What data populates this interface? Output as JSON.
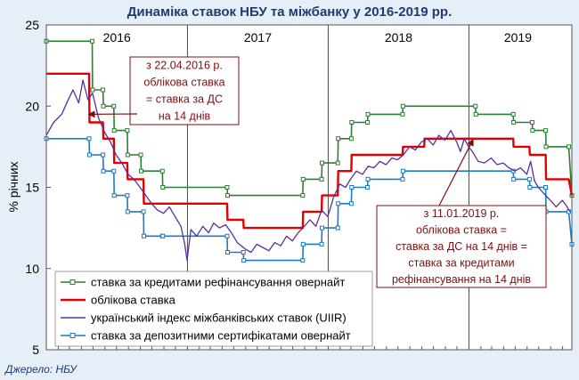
{
  "chart_data": {
    "type": "line",
    "title": "Динаміка ставок НБУ та міжбанку у 2016-2019 рр.",
    "ylabel": "% річних",
    "ylim": [
      5,
      25
    ],
    "yticks": [
      "5",
      "10",
      "15",
      "20",
      "25"
    ],
    "xlim": [
      "2016-01-01",
      "2019-09-25"
    ],
    "year_labels": [
      "2016",
      "2017",
      "2018",
      "2019"
    ],
    "grid": "vertical-year-lines",
    "legend_position": "bottom-left",
    "series": [
      {
        "name": "ставка за кредитами рефінансування овернайт",
        "color": "#2e7d32",
        "marker": "square",
        "points": [
          [
            "2016-01-01",
            24
          ],
          [
            "2016-04-29",
            24
          ],
          [
            "2016-04-30",
            21
          ],
          [
            "2016-05-27",
            21
          ],
          [
            "2016-05-28",
            20
          ],
          [
            "2016-06-24",
            20
          ],
          [
            "2016-06-25",
            18.5
          ],
          [
            "2016-07-29",
            18.5
          ],
          [
            "2016-07-30",
            17
          ],
          [
            "2016-09-02",
            17
          ],
          [
            "2016-09-03",
            16
          ],
          [
            "2016-10-28",
            16
          ],
          [
            "2016-10-29",
            15
          ],
          [
            "2017-04-14",
            15
          ],
          [
            "2017-04-15",
            14.5
          ],
          [
            "2017-10-27",
            14.5
          ],
          [
            "2017-10-28",
            15.5
          ],
          [
            "2017-12-15",
            15.5
          ],
          [
            "2017-12-16",
            16.5
          ],
          [
            "2018-01-26",
            16.5
          ],
          [
            "2018-01-27",
            18
          ],
          [
            "2018-03-02",
            18
          ],
          [
            "2018-03-03",
            19
          ],
          [
            "2018-04-13",
            19
          ],
          [
            "2018-04-14",
            19.5
          ],
          [
            "2018-07-13",
            19.5
          ],
          [
            "2018-07-14",
            20
          ],
          [
            "2019-01-18",
            20
          ],
          [
            "2019-01-19",
            19.5
          ],
          [
            "2019-04-26",
            19.5
          ],
          [
            "2019-04-27",
            19
          ],
          [
            "2019-06-14",
            19
          ],
          [
            "2019-06-15",
            18.5
          ],
          [
            "2019-07-19",
            18.5
          ],
          [
            "2019-07-20",
            17.5
          ],
          [
            "2019-09-17",
            17.5
          ],
          [
            "2019-09-25",
            14.5
          ]
        ]
      },
      {
        "name": "облікова ставка",
        "color": "#e00000",
        "marker": "none",
        "points": [
          [
            "2016-01-01",
            22
          ],
          [
            "2016-04-21",
            22
          ],
          [
            "2016-04-22",
            19
          ],
          [
            "2016-05-27",
            19
          ],
          [
            "2016-05-28",
            18
          ],
          [
            "2016-06-24",
            18
          ],
          [
            "2016-06-25",
            16.5
          ],
          [
            "2016-07-29",
            16.5
          ],
          [
            "2016-07-30",
            15.5
          ],
          [
            "2016-09-09",
            15.5
          ],
          [
            "2016-09-10",
            14
          ],
          [
            "2017-04-14",
            14
          ],
          [
            "2017-04-15",
            13
          ],
          [
            "2017-05-26",
            13
          ],
          [
            "2017-05-27",
            12.5
          ],
          [
            "2017-10-27",
            12.5
          ],
          [
            "2017-10-28",
            13.5
          ],
          [
            "2017-12-15",
            13.5
          ],
          [
            "2017-12-16",
            14.5
          ],
          [
            "2018-01-26",
            14.5
          ],
          [
            "2018-01-27",
            16
          ],
          [
            "2018-03-02",
            16
          ],
          [
            "2018-03-03",
            17
          ],
          [
            "2018-04-13",
            17
          ],
          [
            "2018-04-14",
            17
          ],
          [
            "2018-07-13",
            17
          ],
          [
            "2018-07-14",
            17.5
          ],
          [
            "2018-09-07",
            17.5
          ],
          [
            "2018-09-08",
            18
          ],
          [
            "2019-04-26",
            18
          ],
          [
            "2019-04-27",
            17.5
          ],
          [
            "2019-06-07",
            17.5
          ],
          [
            "2019-06-08",
            17
          ],
          [
            "2019-07-19",
            17
          ],
          [
            "2019-07-20",
            15.5
          ],
          [
            "2019-09-17",
            15.5
          ],
          [
            "2019-09-25",
            14.5
          ]
        ]
      },
      {
        "name": "український індекс міжбанківських ставок (UIIR)",
        "color": "#5a2e9a",
        "marker": "none",
        "points": [
          [
            "2016-01-01",
            18.2
          ],
          [
            "2016-01-20",
            19
          ],
          [
            "2016-02-10",
            19.5
          ],
          [
            "2016-02-25",
            20.3
          ],
          [
            "2016-03-10",
            21
          ],
          [
            "2016-03-25",
            20.2
          ],
          [
            "2016-04-05",
            21.6
          ],
          [
            "2016-04-18",
            20.4
          ],
          [
            "2016-04-30",
            20.8
          ],
          [
            "2016-05-15",
            19.3
          ],
          [
            "2016-05-31",
            18.4
          ],
          [
            "2016-06-15",
            17.8
          ],
          [
            "2016-06-30",
            17
          ],
          [
            "2016-07-15",
            16.5
          ],
          [
            "2016-07-31",
            15.8
          ],
          [
            "2016-08-15",
            15.5
          ],
          [
            "2016-08-31",
            15
          ],
          [
            "2016-09-15",
            14.5
          ],
          [
            "2016-09-30",
            14
          ],
          [
            "2016-10-15",
            13.6
          ],
          [
            "2016-10-31",
            13.4
          ],
          [
            "2016-11-15",
            13.8
          ],
          [
            "2016-11-30",
            13.2
          ],
          [
            "2016-12-15",
            12.6
          ],
          [
            "2016-12-25",
            11.5
          ],
          [
            "2016-12-31",
            10.5
          ],
          [
            "2017-01-10",
            12.4
          ],
          [
            "2017-01-25",
            12
          ],
          [
            "2017-02-10",
            12.6
          ],
          [
            "2017-02-25",
            12.2
          ],
          [
            "2017-03-10",
            12.8
          ],
          [
            "2017-03-25",
            12.5
          ],
          [
            "2017-04-10",
            12.7
          ],
          [
            "2017-04-25",
            12.2
          ],
          [
            "2017-05-10",
            11.6
          ],
          [
            "2017-05-31",
            11.2
          ],
          [
            "2017-06-15",
            11
          ],
          [
            "2017-06-30",
            11.5
          ],
          [
            "2017-07-15",
            11.3
          ],
          [
            "2017-07-31",
            11.1
          ],
          [
            "2017-08-15",
            11.6
          ],
          [
            "2017-08-31",
            11.4
          ],
          [
            "2017-09-15",
            12
          ],
          [
            "2017-09-30",
            11.7
          ],
          [
            "2017-10-15",
            12.2
          ],
          [
            "2017-10-31",
            12.6
          ],
          [
            "2017-11-15",
            13
          ],
          [
            "2017-11-30",
            12.6
          ],
          [
            "2017-12-15",
            13.6
          ],
          [
            "2017-12-31",
            13.2
          ],
          [
            "2018-01-15",
            14.4
          ],
          [
            "2018-01-31",
            15.2
          ],
          [
            "2018-02-15",
            15
          ],
          [
            "2018-02-28",
            15.5
          ],
          [
            "2018-03-15",
            16
          ],
          [
            "2018-03-31",
            15.8
          ],
          [
            "2018-04-15",
            16.3
          ],
          [
            "2018-04-30",
            16.2
          ],
          [
            "2018-05-15",
            16.6
          ],
          [
            "2018-05-31",
            16.4
          ],
          [
            "2018-06-15",
            16.8
          ],
          [
            "2018-06-30",
            16.7
          ],
          [
            "2018-07-15",
            17
          ],
          [
            "2018-07-31",
            17.5
          ],
          [
            "2018-08-15",
            17.3
          ],
          [
            "2018-08-31",
            17.8
          ],
          [
            "2018-09-15",
            18
          ],
          [
            "2018-09-30",
            17.6
          ],
          [
            "2018-10-15",
            18.2
          ],
          [
            "2018-10-31",
            17.9
          ],
          [
            "2018-11-15",
            18.5
          ],
          [
            "2018-11-30",
            17.8
          ],
          [
            "2018-12-10",
            17.2
          ],
          [
            "2018-12-20",
            18
          ],
          [
            "2018-12-31",
            17.5
          ],
          [
            "2019-01-10",
            17.2
          ],
          [
            "2019-01-25",
            16.6
          ],
          [
            "2019-02-10",
            16.5
          ],
          [
            "2019-02-28",
            16.8
          ],
          [
            "2019-03-15",
            16.4
          ],
          [
            "2019-03-31",
            16.5
          ],
          [
            "2019-04-15",
            16.2
          ],
          [
            "2019-04-30",
            16
          ],
          [
            "2019-05-15",
            16.2
          ],
          [
            "2019-05-31",
            15.8
          ],
          [
            "2019-06-10",
            16.6
          ],
          [
            "2019-06-20",
            15.4
          ],
          [
            "2019-06-30",
            15
          ],
          [
            "2019-07-15",
            14.6
          ],
          [
            "2019-07-31",
            14.2
          ],
          [
            "2019-08-15",
            13.8
          ],
          [
            "2019-08-31",
            14.2
          ],
          [
            "2019-09-10",
            13.9
          ],
          [
            "2019-09-20",
            13.5
          ]
        ]
      },
      {
        "name": "ставка за депозитними сертифікатами овернайт",
        "color": "#1f7ac0",
        "marker": "square",
        "points": [
          [
            "2016-01-01",
            18
          ],
          [
            "2016-04-21",
            18
          ],
          [
            "2016-04-22",
            17
          ],
          [
            "2016-05-27",
            17
          ],
          [
            "2016-05-28",
            16
          ],
          [
            "2016-06-24",
            16
          ],
          [
            "2016-06-25",
            14.5
          ],
          [
            "2016-07-29",
            14.5
          ],
          [
            "2016-07-30",
            13.5
          ],
          [
            "2016-09-09",
            13.5
          ],
          [
            "2016-09-10",
            12
          ],
          [
            "2016-10-28",
            12
          ],
          [
            "2016-10-29",
            12
          ],
          [
            "2017-04-14",
            12
          ],
          [
            "2017-04-15",
            11
          ],
          [
            "2017-05-26",
            11
          ],
          [
            "2017-05-27",
            10.5
          ],
          [
            "2017-10-27",
            10.5
          ],
          [
            "2017-10-28",
            11.5
          ],
          [
            "2017-12-15",
            11.5
          ],
          [
            "2017-12-16",
            12.5
          ],
          [
            "2018-01-26",
            12.5
          ],
          [
            "2018-01-27",
            14
          ],
          [
            "2018-03-02",
            14
          ],
          [
            "2018-03-03",
            15
          ],
          [
            "2018-04-13",
            15
          ],
          [
            "2018-04-14",
            15.5
          ],
          [
            "2018-07-13",
            15.5
          ],
          [
            "2018-07-14",
            16
          ],
          [
            "2019-04-26",
            16
          ],
          [
            "2019-04-27",
            15.5
          ],
          [
            "2019-06-07",
            15.5
          ],
          [
            "2019-06-08",
            15
          ],
          [
            "2019-07-19",
            15
          ],
          [
            "2019-07-20",
            13.5
          ],
          [
            "2019-09-17",
            13.5
          ],
          [
            "2019-09-25",
            11.5
          ]
        ]
      }
    ],
    "annotations": [
      {
        "lines": [
          "з 22.04.2016 р.",
          "облікова ставка",
          "= ставка за ДС",
          "на 14 днів"
        ],
        "arrow_to": [
          "2016-04-22",
          19.5
        ]
      },
      {
        "lines": [
          "з 11.01.2019 р.",
          "облікова ставка =",
          "ставка за ДС на 14 днів =",
          "ставка за кредитами",
          "рефінансування на 14 днів"
        ],
        "arrow_to": [
          "2019-01-11",
          17.9
        ]
      }
    ]
  },
  "source_note": "Джерело: НБУ"
}
